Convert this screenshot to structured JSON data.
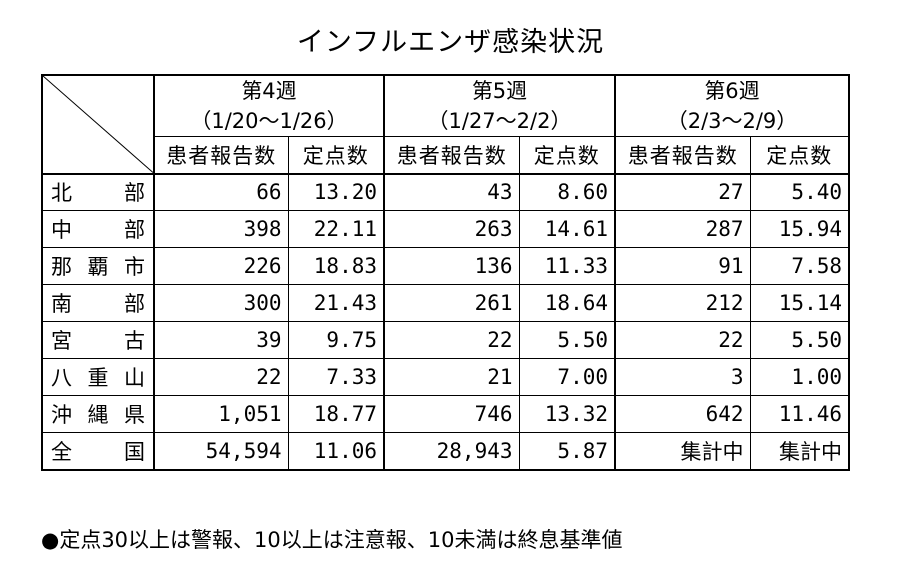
{
  "title": "インフルエンザ感染状況",
  "weeks": [
    {
      "label": "第4週",
      "range": "（1/20～1/26）"
    },
    {
      "label": "第5週",
      "range": "（1/27～2/2）"
    },
    {
      "label": "第6週",
      "range": "（2/3～2/9）"
    }
  ],
  "subheaders": {
    "patients": "患者報告数",
    "per_site": "定点数"
  },
  "rows": [
    {
      "region": "北部",
      "w4_patients": "66",
      "w4_rate": "13.20",
      "w5_patients": "43",
      "w5_rate": "8.60",
      "w6_patients": "27",
      "w6_rate": "5.40"
    },
    {
      "region": "中部",
      "w4_patients": "398",
      "w4_rate": "22.11",
      "w5_patients": "263",
      "w5_rate": "14.61",
      "w6_patients": "287",
      "w6_rate": "15.94"
    },
    {
      "region": "那覇市",
      "w4_patients": "226",
      "w4_rate": "18.83",
      "w5_patients": "136",
      "w5_rate": "11.33",
      "w6_patients": "91",
      "w6_rate": "7.58"
    },
    {
      "region": "南部",
      "w4_patients": "300",
      "w4_rate": "21.43",
      "w5_patients": "261",
      "w5_rate": "18.64",
      "w6_patients": "212",
      "w6_rate": "15.14"
    },
    {
      "region": "宮古",
      "w4_patients": "39",
      "w4_rate": "9.75",
      "w5_patients": "22",
      "w5_rate": "5.50",
      "w6_patients": "22",
      "w6_rate": "5.50"
    },
    {
      "region": "八重山",
      "w4_patients": "22",
      "w4_rate": "7.33",
      "w5_patients": "21",
      "w5_rate": "7.00",
      "w6_patients": "3",
      "w6_rate": "1.00"
    },
    {
      "region": "沖縄県",
      "w4_patients": "1,051",
      "w4_rate": "18.77",
      "w5_patients": "746",
      "w5_rate": "13.32",
      "w6_patients": "642",
      "w6_rate": "11.46"
    },
    {
      "region": "全国",
      "w4_patients": "54,594",
      "w4_rate": "11.06",
      "w5_patients": "28,943",
      "w5_rate": "5.87",
      "w6_patients": "集計中",
      "w6_rate": "集計中"
    }
  ],
  "note": "●定点30以上は警報、10以上は注意報、10未満は終息基準値"
}
